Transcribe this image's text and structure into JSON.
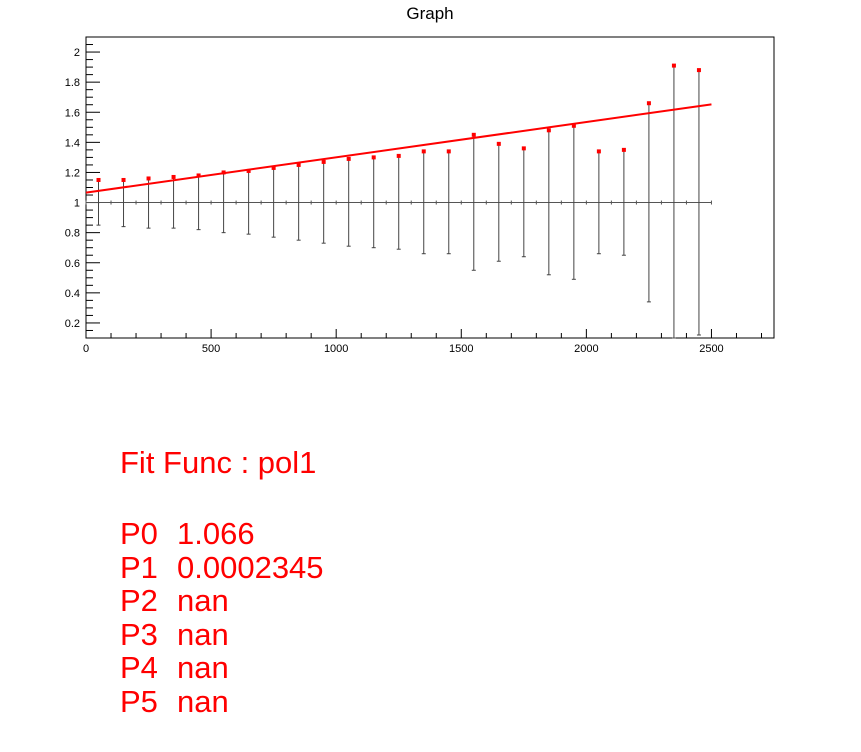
{
  "colors": {
    "data": "#ff0000",
    "fit": "#ff0000",
    "errorbar": "#000000",
    "frame": "#000000",
    "text": "#ff0000"
  },
  "chart_data": {
    "type": "scatter",
    "title": "Graph",
    "xlabel": "",
    "ylabel": "",
    "xlim": [
      0,
      2750
    ],
    "ylim": [
      0.1,
      2.1
    ],
    "x_ticks": [
      0,
      500,
      1000,
      1500,
      2000,
      2500
    ],
    "y_ticks": [
      0.2,
      0.4,
      0.6,
      0.8,
      1,
      1.2,
      1.4,
      1.6,
      1.8,
      2
    ],
    "reference_line": {
      "y": 1,
      "x_range": [
        0,
        2500
      ]
    },
    "series": [
      {
        "x": [
          50,
          150,
          250,
          350,
          450,
          550,
          650,
          750,
          850,
          950,
          1050,
          1150,
          1250,
          1350,
          1450,
          1550,
          1650,
          1750,
          1850,
          1950,
          2050,
          2150,
          2250,
          2350,
          2450
        ],
        "y": [
          1.15,
          1.15,
          1.16,
          1.17,
          1.18,
          1.2,
          1.21,
          1.23,
          1.25,
          1.27,
          1.29,
          1.3,
          1.31,
          1.34,
          1.34,
          1.45,
          1.39,
          1.36,
          1.48,
          1.51,
          1.34,
          1.35,
          1.66,
          1.91,
          1.88
        ],
        "error_low": [
          0.85,
          0.84,
          0.83,
          0.83,
          0.82,
          0.8,
          0.79,
          0.77,
          0.75,
          0.73,
          0.71,
          0.7,
          0.69,
          0.66,
          0.66,
          0.55,
          0.61,
          0.64,
          0.52,
          0.49,
          0.66,
          0.65,
          0.34,
          0.09,
          0.12
        ],
        "error_high": [
          1.15,
          1.15,
          1.16,
          1.17,
          1.18,
          1.2,
          1.21,
          1.23,
          1.25,
          1.27,
          1.29,
          1.3,
          1.31,
          1.34,
          1.34,
          1.45,
          1.39,
          1.36,
          1.48,
          1.51,
          1.34,
          1.35,
          1.66,
          1.91,
          1.88
        ]
      }
    ],
    "fit": {
      "function": "pol1",
      "p0": 1.066,
      "p1": 0.0002345,
      "x_range": [
        0,
        2500
      ]
    }
  },
  "fit_box": {
    "title": "Fit Func : pol1",
    "params": [
      {
        "name": "P0",
        "value": "1.066"
      },
      {
        "name": "P1",
        "value": "0.0002345"
      },
      {
        "name": "P2",
        "value": "nan"
      },
      {
        "name": "P3",
        "value": "nan"
      },
      {
        "name": "P4",
        "value": "nan"
      },
      {
        "name": "P5",
        "value": "nan"
      }
    ]
  }
}
